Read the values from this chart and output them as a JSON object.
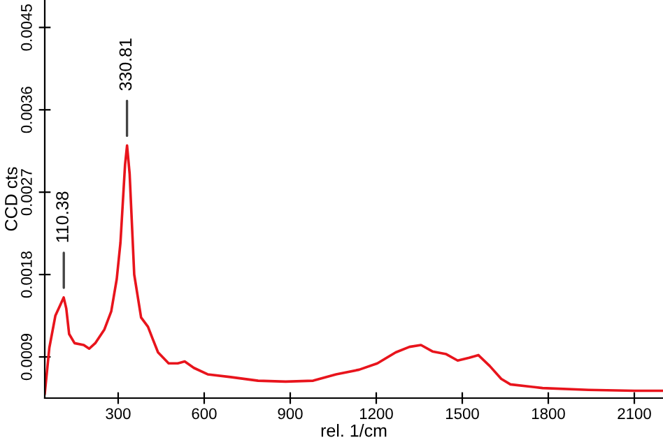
{
  "chart_data": {
    "type": "line",
    "xlabel": "rel. 1/cm",
    "ylabel": "CCD cts",
    "x": [
      44,
      60,
      81,
      100,
      110,
      119,
      129,
      148,
      180,
      199,
      220,
      252,
      276,
      295,
      308,
      324,
      331,
      340,
      356,
      380,
      404,
      420,
      439,
      476,
      508,
      532,
      564,
      612,
      692,
      788,
      884,
      980,
      1060,
      1140,
      1204,
      1268,
      1316,
      1356,
      1396,
      1444,
      1484,
      1524,
      1556,
      1596,
      1636,
      1668,
      1780,
      1940,
      2100,
      2196
    ],
    "series": [
      {
        "color": "#e8141c",
        "values": [
          0.0005,
          0.001,
          0.00135,
          0.00148,
          0.00155,
          0.00143,
          0.00115,
          0.00105,
          0.00103,
          0.00099,
          0.00105,
          0.0012,
          0.0014,
          0.00175,
          0.00215,
          0.003,
          0.00321,
          0.0029,
          0.0018,
          0.00133,
          0.00123,
          0.0011,
          0.00095,
          0.00083,
          0.00083,
          0.00085,
          0.00078,
          0.00071,
          0.00068,
          0.00064,
          0.00063,
          0.00064,
          0.00071,
          0.00076,
          0.00083,
          0.00095,
          0.00101,
          0.00103,
          0.00096,
          0.00093,
          0.00086,
          0.00089,
          0.00092,
          0.0008,
          0.00066,
          0.0006,
          0.00056,
          0.00054,
          0.00053,
          0.00053
        ]
      }
    ],
    "annotations": [
      {
        "text": "110.38",
        "x": 110.38,
        "y": 0.00155
      },
      {
        "text": "330.81",
        "x": 330.81,
        "y": 0.00321
      }
    ],
    "xlim": [
      44,
      2200
    ],
    "ylim": [
      0.00045,
      0.0048
    ],
    "xticks": [
      300,
      600,
      900,
      1200,
      1500,
      1800,
      2100
    ],
    "yticks": [
      0.0009,
      0.0018,
      0.0027,
      0.0036,
      0.0045
    ],
    "grid": false,
    "marker": "none",
    "line_style": "solid"
  }
}
